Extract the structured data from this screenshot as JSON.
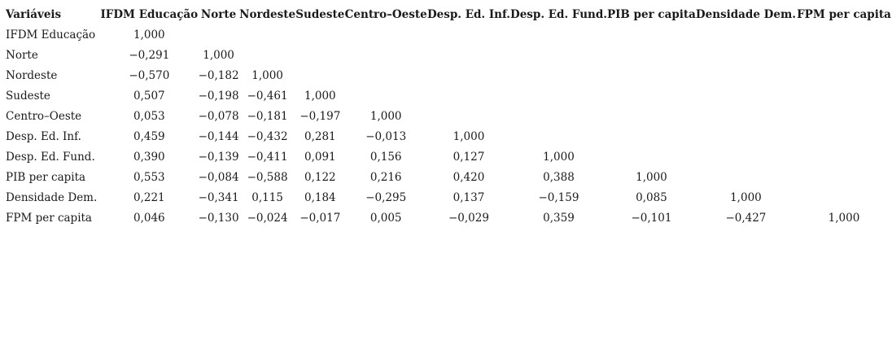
{
  "table": {
    "header": [
      "Variáveis",
      "IFDM Educação",
      "Norte",
      "Nordeste",
      "Sudeste",
      "Centro–Oeste",
      "Desp. Ed. Inf.",
      "Desp. Ed. Fund.",
      "PIB per capita",
      "Densidade Dem.",
      "FPM per capita"
    ],
    "rows": [
      {
        "label": "IFDM Educação",
        "values": [
          "1,000",
          "",
          "",
          "",
          "",
          "",
          "",
          "",
          "",
          ""
        ]
      },
      {
        "label": "Norte",
        "values": [
          "−0,291",
          "1,000",
          "",
          "",
          "",
          "",
          "",
          "",
          "",
          ""
        ]
      },
      {
        "label": "Nordeste",
        "values": [
          "−0,570",
          "−0,182",
          "1,000",
          "",
          "",
          "",
          "",
          "",
          "",
          ""
        ]
      },
      {
        "label": "Sudeste",
        "values": [
          "0,507",
          "−0,198",
          "−0,461",
          "1,000",
          "",
          "",
          "",
          "",
          "",
          ""
        ]
      },
      {
        "label": "Centro–Oeste",
        "values": [
          "0,053",
          "−0,078",
          "−0,181",
          "−0,197",
          "1,000",
          "",
          "",
          "",
          "",
          ""
        ]
      },
      {
        "label": "Desp. Ed. Inf.",
        "values": [
          "0,459",
          "−0,144",
          "−0,432",
          "0,281",
          "−0,013",
          "1,000",
          "",
          "",
          "",
          ""
        ]
      },
      {
        "label": "Desp. Ed. Fund.",
        "values": [
          "0,390",
          "−0,139",
          "−0,411",
          "0,091",
          "0,156",
          "0,127",
          "1,000",
          "",
          "",
          ""
        ]
      },
      {
        "label": "PIB per capita",
        "values": [
          "0,553",
          "−0,084",
          "−0,588",
          "0,122",
          "0,216",
          "0,420",
          "0,388",
          "1,000",
          "",
          ""
        ]
      },
      {
        "label": "Densidade Dem.",
        "values": [
          "0,221",
          "−0,341",
          "0,115",
          "0,184",
          "−0,295",
          "0,137",
          "−0,159",
          "0,085",
          "1,000",
          ""
        ]
      },
      {
        "label": "FPM per capita",
        "values": [
          "0,046",
          "−0,130",
          "−0,024",
          "−0,017",
          "0,005",
          "−0,029",
          "0,359",
          "−0,101",
          "−0,427",
          "1,000"
        ]
      }
    ]
  }
}
